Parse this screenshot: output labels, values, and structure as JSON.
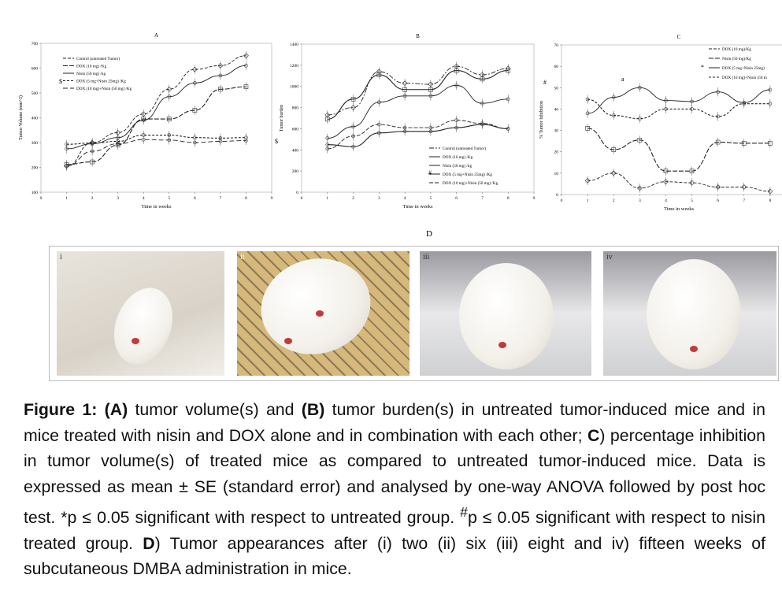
{
  "chart_data": [
    {
      "type": "line",
      "title": "A",
      "xlabel": "Time in weeks",
      "ylabel": "Tumor Volume (mm^3)",
      "xlim": [
        0,
        9
      ],
      "ylim": [
        100,
        700
      ],
      "xticks": [
        0,
        1,
        2,
        3,
        4,
        5,
        6,
        7,
        8,
        9
      ],
      "yticks": [
        100,
        200,
        300,
        400,
        500,
        600,
        700
      ],
      "x": [
        1,
        2,
        3,
        4,
        5,
        6,
        7,
        8
      ],
      "legend_position": "top-left",
      "annotations": [
        "$",
        "$"
      ],
      "series": [
        {
          "name": "Control (untreated Tumor)",
          "values": [
            205,
            300,
            340,
            415,
            515,
            595,
            610,
            650
          ]
        },
        {
          "name": "DOX (10 mg) /Kg",
          "values": [
            212,
            222,
            290,
            395,
            395,
            430,
            515,
            525
          ]
        },
        {
          "name": "Nisin (50 mg) /kg",
          "values": [
            275,
            295,
            320,
            390,
            485,
            540,
            570,
            610
          ]
        },
        {
          "name": "DOX (5 mg+Nisin 25mg) /Kg",
          "values": [
            293,
            298,
            305,
            330,
            330,
            320,
            318,
            320
          ]
        },
        {
          "name": "DOX (10 mg)+Nisin (50 mg) /Kg",
          "values": [
            205,
            265,
            295,
            312,
            310,
            300,
            305,
            308
          ]
        }
      ]
    },
    {
      "type": "line",
      "title": "B",
      "xlabel": "Time in weeks",
      "ylabel": "Tumor burden",
      "xlim": [
        0,
        9
      ],
      "ylim": [
        0,
        1400
      ],
      "xticks": [
        0,
        1,
        2,
        3,
        4,
        5,
        6,
        7,
        8,
        9
      ],
      "yticks": [
        0,
        200,
        400,
        600,
        800,
        1000,
        1200,
        1400
      ],
      "x": [
        1,
        2,
        3,
        4,
        5,
        6,
        7,
        8
      ],
      "legend_position": "bottom-right",
      "annotations": [
        "#",
        "#"
      ],
      "series": [
        {
          "name": "Control (untreated Tumor)",
          "values": [
            730,
            800,
            1140,
            1030,
            1020,
            1190,
            1110,
            1170
          ]
        },
        {
          "name": "DOX (10 mg) /Kg",
          "values": [
            690,
            880,
            1110,
            970,
            970,
            1150,
            1070,
            1150
          ]
        },
        {
          "name": "Nisin (50 mg) /kg",
          "values": [
            510,
            620,
            850,
            910,
            910,
            1010,
            840,
            880
          ]
        },
        {
          "name": "DOX (5 mg+Nisin 25mg) /Kg",
          "values": [
            450,
            430,
            560,
            575,
            575,
            610,
            640,
            600
          ]
        },
        {
          "name": "DOX (10 mg)+Nisin (50 mg) /Kg",
          "values": [
            410,
            530,
            640,
            610,
            610,
            680,
            650,
            600
          ]
        }
      ]
    },
    {
      "type": "line",
      "title": "C",
      "xlabel": "Time in weeks",
      "ylabel": "% Tumor Inhibition",
      "xlim": [
        0,
        9
      ],
      "ylim": [
        0,
        70
      ],
      "xticks": [
        0,
        1,
        2,
        3,
        4,
        5,
        6,
        7,
        8
      ],
      "yticks": [
        0,
        10,
        20,
        30,
        40,
        50,
        60,
        70
      ],
      "x": [
        1,
        2,
        3,
        4,
        5,
        6,
        7,
        8
      ],
      "legend_position": "top-right",
      "annotations": [
        "*",
        "a"
      ],
      "series": [
        {
          "name": "DOX (10 mg)/Kg",
          "values": [
            6.5,
            10,
            3,
            6,
            5.5,
            3.5,
            3.5,
            1.5
          ]
        },
        {
          "name": "Nisin (50 mg)/Kg",
          "values": [
            31,
            21,
            25.5,
            11,
            11,
            24.5,
            24,
            24
          ]
        },
        {
          "name": "DOX (5 mg+Nisin 25mg)",
          "values": [
            38,
            45.5,
            50,
            44,
            43.5,
            48,
            43,
            49
          ]
        },
        {
          "name": "DOX (10 mg)+Nisin (50 m",
          "values": [
            44.5,
            37,
            35.5,
            40,
            40,
            36.5,
            42.5,
            42.5
          ]
        }
      ]
    }
  ],
  "panel_d": {
    "title": "D",
    "photos": [
      {
        "label": "i"
      },
      {
        "label": "ii"
      },
      {
        "label": "iii"
      },
      {
        "label": "iv"
      }
    ]
  },
  "caption": {
    "fig_label": "Figure 1:",
    "a_label": "(A)",
    "t1": " tumor volume(s) and ",
    "b_label": "(B)",
    "t2": " tumor burden(s) in untreated tumor-induced mice and in mice treated with nisin and DOX alone and in combination with each other; ",
    "c_label": "C",
    "t3": ") percentage inhibition in tumor volume(s) of treated mice as compared to untreated tumor-induced mice. Data is expressed as mean ± SE (standard error) and analysed by one-way ANOVA followed by post hoc test. *p ≤ 0.05 significant with respect to untreated group. ",
    "hash": "#",
    "t4": "p ≤ 0.05 significant with respect to nisin treated group. ",
    "d_label": "D",
    "t5": ") Tumor appearances after (i) two (ii) six (iii) eight and iv) fifteen weeks of subcutaneous DMBA administration in mice."
  }
}
